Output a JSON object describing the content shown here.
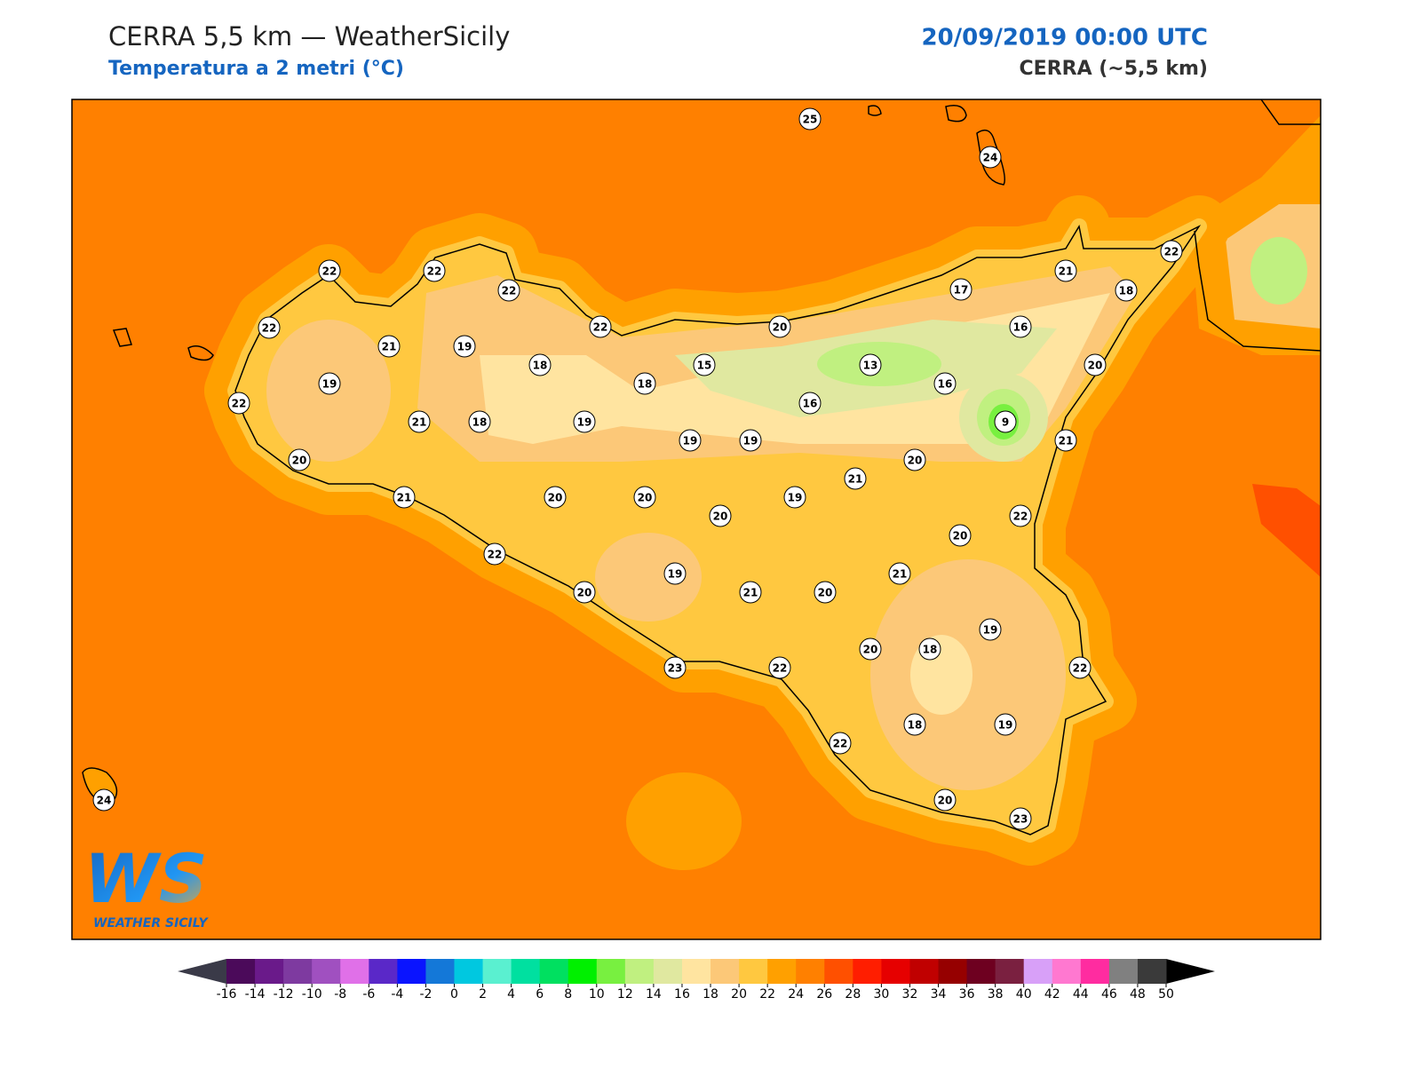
{
  "header": {
    "title": "CERRA 5,5 km — WeatherSicily",
    "subtitle": "Temperatura a 2 metri (°C)",
    "datetime": "20/09/2019 00:00 UTC",
    "model": "CERRA (~5,5 km)"
  },
  "stations": [
    25,
    24,
    22,
    22,
    22,
    22,
    21,
    17,
    18,
    22,
    22,
    20,
    16,
    21,
    19,
    18,
    15,
    13,
    20,
    19,
    18,
    16,
    22,
    16,
    21,
    18,
    19,
    9,
    19,
    19,
    21,
    20,
    20,
    21,
    21,
    20,
    20,
    19,
    20,
    22,
    20,
    22,
    21,
    19,
    20,
    21,
    20,
    19,
    20,
    18,
    23,
    22,
    22,
    22,
    18,
    19,
    20,
    23,
    24
  ],
  "colorbar": {
    "ticks": [
      -16,
      -14,
      -12,
      -10,
      -8,
      -6,
      -4,
      -2,
      0,
      2,
      4,
      6,
      8,
      10,
      12,
      14,
      16,
      18,
      20,
      22,
      24,
      26,
      28,
      30,
      32,
      34,
      36,
      38,
      40,
      42,
      44,
      46,
      48,
      50
    ],
    "colors": [
      "#4b0a5a",
      "#6a1a8a",
      "#7e3aa0",
      "#a050c0",
      "#e070e8",
      "#5a28c8",
      "#0a14ff",
      "#1478d8",
      "#00c8e0",
      "#5af0d0",
      "#00e0a0",
      "#00e060",
      "#00f000",
      "#78f040",
      "#c0f080",
      "#e0e8a0",
      "#ffe4a0",
      "#fcc878",
      "#ffc840",
      "#ffa000",
      "#ff8000",
      "#ff5000",
      "#ff1e00",
      "#e60000",
      "#c00000",
      "#960000",
      "#6e0020",
      "#7a2040",
      "#d8a0f8",
      "#ff78d0",
      "#ff2ca0",
      "#808080",
      "#3a3a3a"
    ]
  },
  "logo": {
    "mark": "WS",
    "name": "WEATHER SICILY"
  }
}
